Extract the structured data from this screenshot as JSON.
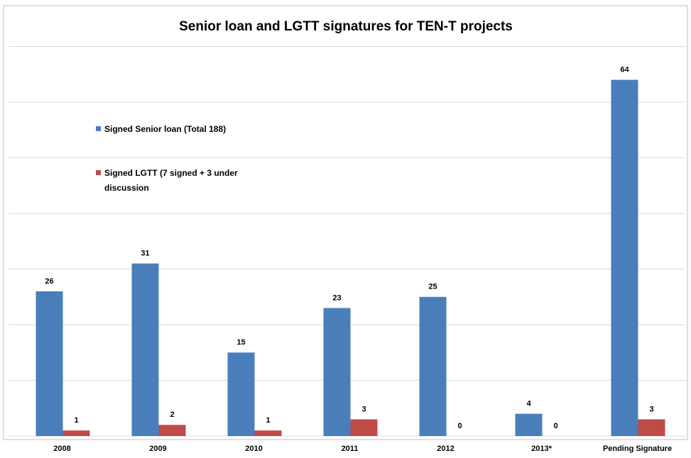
{
  "chart_data": {
    "type": "bar",
    "title": "Senior loan and LGTT signatures for TEN-T projects",
    "categories": [
      "2008",
      "2009",
      "2010",
      "2011",
      "2012",
      "2013*",
      "Pending Signature"
    ],
    "series": [
      {
        "name": "Signed Senior loan (Total 188)",
        "color": "#4a7ebb",
        "values": [
          26,
          31,
          15,
          23,
          25,
          4,
          64
        ]
      },
      {
        "name": "Signed LGTT (7 signed + 3 under discussion",
        "color": "#be4b48",
        "values": [
          1,
          2,
          1,
          3,
          0,
          0,
          3
        ]
      }
    ],
    "ylim": [
      0,
      70
    ],
    "yticks": [
      0,
      10,
      20,
      30,
      40,
      50,
      60,
      70
    ],
    "grid": true
  }
}
